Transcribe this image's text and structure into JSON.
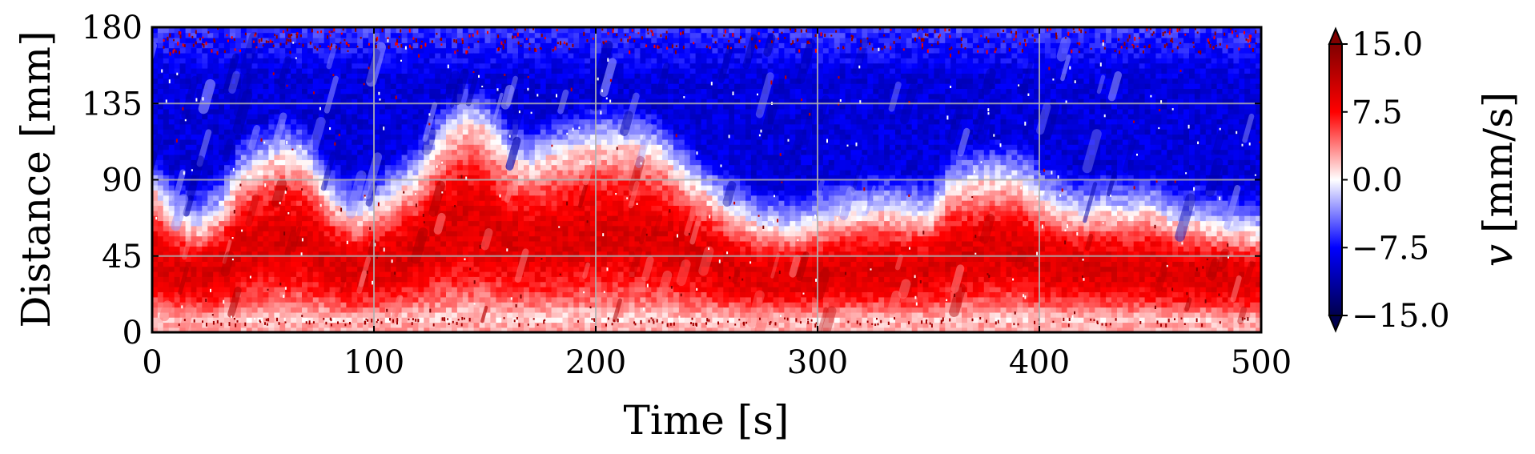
{
  "chart_data": {
    "type": "heatmap",
    "title": "",
    "xlabel": "Time [s]",
    "ylabel": "Distance [mm]",
    "colorbar_label_var": "v",
    "colorbar_label_unit": "[mm/s]",
    "xlim": [
      0,
      500
    ],
    "ylim": [
      0,
      180
    ],
    "xticks": [
      0,
      100,
      200,
      300,
      400,
      500
    ],
    "yticks": [
      0,
      45,
      90,
      135,
      180
    ],
    "xtick_labels": [
      "0",
      "100",
      "200",
      "300",
      "400",
      "500"
    ],
    "ytick_labels": [
      "0",
      "45",
      "90",
      "135",
      "180"
    ],
    "grid": true,
    "colormap": "seismic",
    "colorbar_range": [
      -15.0,
      15.0
    ],
    "colorbar_ticks": [
      15.0,
      7.5,
      0.0,
      -7.5,
      -15.0
    ],
    "colorbar_tick_labels": [
      "15.0",
      "7.5",
      "0.0",
      "−7.5",
      "−15.0"
    ],
    "colorbar_extend": "both",
    "colors": {
      "negative": "#00004d",
      "zero": "#ffffff",
      "positive": "#800000",
      "grid": "#b0b0b0"
    },
    "interface_time": [
      0,
      10,
      20,
      30,
      40,
      50,
      60,
      70,
      80,
      90,
      100,
      110,
      120,
      130,
      140,
      150,
      160,
      170,
      180,
      190,
      200,
      210,
      220,
      230,
      240,
      250,
      260,
      270,
      280,
      290,
      300,
      310,
      320,
      330,
      340,
      350,
      360,
      370,
      380,
      390,
      400,
      410,
      420,
      430,
      440,
      450,
      460,
      470,
      480,
      490,
      500
    ],
    "interface_distance_mm": [
      85,
      68,
      62,
      70,
      92,
      100,
      106,
      100,
      80,
      68,
      72,
      82,
      92,
      112,
      125,
      122,
      105,
      98,
      105,
      108,
      112,
      112,
      110,
      105,
      92,
      82,
      72,
      65,
      62,
      60,
      65,
      68,
      70,
      72,
      70,
      68,
      85,
      88,
      90,
      90,
      80,
      72,
      70,
      72,
      70,
      72,
      65,
      65,
      62,
      60,
      58
    ]
  }
}
